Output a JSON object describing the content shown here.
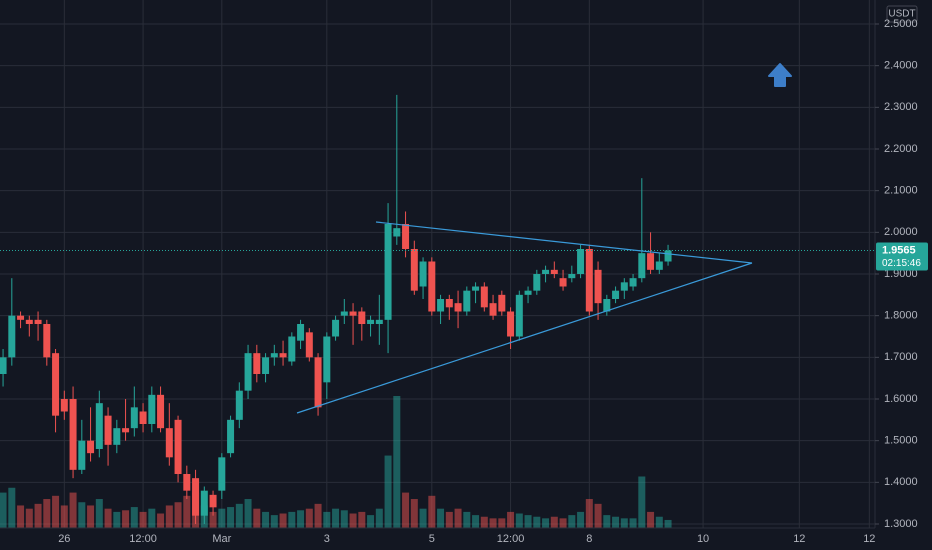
{
  "chart_data": {
    "type": "candlestick",
    "currency": "USDT",
    "open": [
      1.66,
      1.7,
      1.8,
      1.79,
      1.79,
      1.78,
      1.71,
      1.6,
      1.6,
      1.43,
      1.5,
      1.48,
      1.56,
      1.49,
      1.53,
      1.53,
      1.57,
      1.54,
      1.61,
      1.53,
      1.55,
      1.42,
      1.41,
      1.32,
      1.37,
      1.38,
      1.47,
      1.55,
      1.62,
      1.71,
      1.66,
      1.7,
      1.71,
      1.69,
      1.74,
      1.76,
      1.7,
      1.64,
      1.75,
      1.8,
      1.81,
      1.81,
      1.78,
      1.78,
      1.79,
      1.99,
      2.02,
      1.96,
      1.87,
      1.93,
      1.81,
      1.84,
      1.83,
      1.81,
      1.86,
      1.87,
      1.83,
      1.85,
      1.81,
      1.75,
      1.85,
      1.86,
      1.9,
      1.91,
      1.89,
      1.89,
      1.9,
      1.96,
      1.91,
      1.81,
      1.84,
      1.86,
      1.87,
      1.89,
      1.95,
      1.91,
      1.93
    ],
    "high": [
      1.72,
      1.89,
      1.81,
      1.8,
      1.81,
      1.79,
      1.72,
      1.62,
      1.63,
      1.55,
      1.58,
      1.62,
      1.58,
      1.55,
      1.6,
      1.63,
      1.59,
      1.63,
      1.63,
      1.59,
      1.56,
      1.44,
      1.43,
      1.39,
      1.38,
      1.47,
      1.56,
      1.64,
      1.73,
      1.73,
      1.71,
      1.73,
      1.74,
      1.76,
      1.79,
      1.77,
      1.71,
      1.76,
      1.8,
      1.84,
      1.83,
      1.82,
      1.8,
      1.85,
      2.07,
      2.33,
      2.05,
      1.98,
      1.94,
      1.94,
      1.85,
      1.85,
      1.86,
      1.87,
      1.88,
      1.88,
      1.85,
      1.86,
      1.82,
      1.86,
      1.87,
      1.91,
      1.92,
      1.93,
      1.91,
      1.92,
      1.97,
      1.97,
      1.93,
      1.85,
      1.87,
      1.89,
      1.9,
      2.13,
      2.0,
      1.95,
      1.97
    ],
    "low": [
      1.63,
      1.68,
      1.77,
      1.75,
      1.74,
      1.68,
      1.52,
      1.55,
      1.41,
      1.42,
      1.45,
      1.46,
      1.44,
      1.47,
      1.5,
      1.51,
      1.52,
      1.52,
      1.52,
      1.44,
      1.4,
      1.36,
      1.3,
      1.3,
      1.32,
      1.36,
      1.46,
      1.53,
      1.6,
      1.64,
      1.64,
      1.68,
      1.68,
      1.68,
      1.72,
      1.69,
      1.56,
      1.6,
      1.74,
      1.78,
      1.73,
      1.74,
      1.75,
      1.73,
      1.71,
      1.97,
      1.94,
      1.85,
      1.84,
      1.8,
      1.78,
      1.79,
      1.77,
      1.8,
      1.83,
      1.81,
      1.79,
      1.8,
      1.72,
      1.74,
      1.83,
      1.85,
      1.88,
      1.89,
      1.86,
      1.88,
      1.89,
      1.8,
      1.79,
      1.8,
      1.83,
      1.84,
      1.86,
      1.88,
      1.9,
      1.9,
      1.92
    ],
    "close": [
      1.7,
      1.8,
      1.79,
      1.78,
      1.78,
      1.7,
      1.56,
      1.57,
      1.43,
      1.5,
      1.47,
      1.59,
      1.49,
      1.53,
      1.52,
      1.58,
      1.54,
      1.61,
      1.53,
      1.46,
      1.42,
      1.38,
      1.32,
      1.38,
      1.34,
      1.46,
      1.55,
      1.62,
      1.71,
      1.66,
      1.7,
      1.71,
      1.7,
      1.75,
      1.78,
      1.7,
      1.58,
      1.75,
      1.79,
      1.81,
      1.8,
      1.78,
      1.79,
      1.79,
      2.02,
      2.01,
      1.96,
      1.86,
      1.93,
      1.81,
      1.84,
      1.82,
      1.81,
      1.86,
      1.87,
      1.82,
      1.8,
      1.81,
      1.75,
      1.85,
      1.86,
      1.9,
      1.91,
      1.9,
      1.87,
      1.9,
      1.96,
      1.81,
      1.83,
      1.84,
      1.86,
      1.88,
      1.89,
      1.95,
      1.91,
      1.93,
      1.9565
    ],
    "volume": [
      22,
      25,
      14,
      12,
      15,
      18,
      20,
      14,
      22,
      16,
      14,
      18,
      12,
      10,
      11,
      13,
      10,
      12,
      9,
      14,
      16,
      20,
      22,
      14,
      10,
      12,
      13,
      15,
      18,
      12,
      10,
      8,
      9,
      10,
      11,
      12,
      15,
      10,
      12,
      11,
      9,
      10,
      8,
      12,
      45,
      82,
      22,
      18,
      12,
      20,
      12,
      10,
      12,
      10,
      8,
      7,
      6,
      6,
      10,
      9,
      8,
      7,
      6,
      7,
      6,
      8,
      10,
      18,
      15,
      8,
      7,
      6,
      6,
      32,
      10,
      7,
      5
    ],
    "up_color": "#26a69a",
    "down_color": "#ef5350",
    "xlim": [
      -0.35,
      99.65
    ],
    "xticks": [
      {
        "value": 7,
        "label": "26"
      },
      {
        "value": 16,
        "label": "12:00"
      },
      {
        "value": 25,
        "label": "Mar"
      },
      {
        "value": 37,
        "label": "3"
      },
      {
        "value": 49,
        "label": "5"
      },
      {
        "value": 58,
        "label": "12:00"
      },
      {
        "value": 67,
        "label": "8"
      },
      {
        "value": 80,
        "label": "10"
      },
      {
        "value": 91,
        "label": "12"
      },
      {
        "value": 99,
        "label": "12"
      }
    ],
    "ylim": [
      1.2904,
      2.5576
    ],
    "yticks": [
      {
        "value": 1.3,
        "label": "1.3000"
      },
      {
        "value": 1.4,
        "label": "1.4000"
      },
      {
        "value": 1.5,
        "label": "1.5000"
      },
      {
        "value": 1.6,
        "label": "1.6000"
      },
      {
        "value": 1.7,
        "label": "1.7000"
      },
      {
        "value": 1.8,
        "label": "1.8000"
      },
      {
        "value": 1.9,
        "label": "1.9000"
      },
      {
        "value": 2.0,
        "label": "2.0000"
      },
      {
        "value": 2.1,
        "label": "2.1000"
      },
      {
        "value": 2.2,
        "label": "2.2000"
      },
      {
        "value": 2.3,
        "label": "2.3000"
      },
      {
        "value": 2.4,
        "label": "2.4000"
      },
      {
        "value": 2.5,
        "label": "2.5000"
      }
    ],
    "grid": true,
    "last_price": 1.9565,
    "countdown": "02:15:46"
  }
}
